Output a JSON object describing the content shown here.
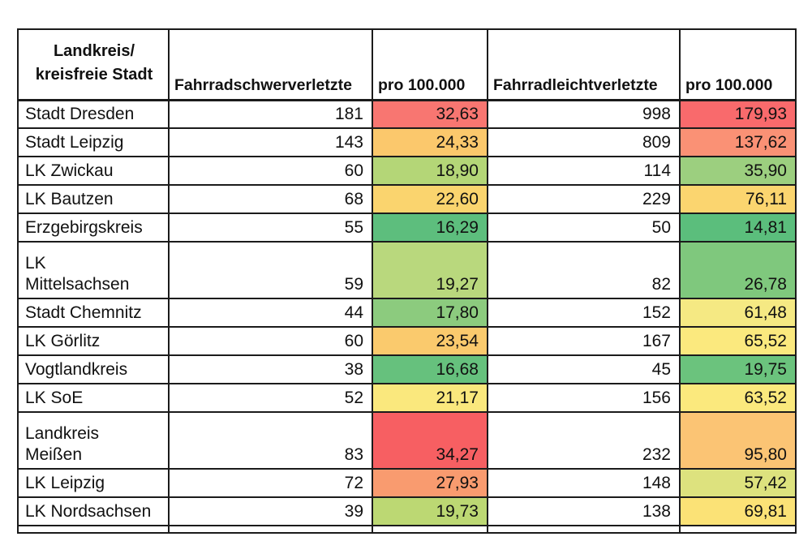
{
  "colors": {
    "background": "#ffffff",
    "border": "#1b1b1b",
    "text": "#111111",
    "scale_green": "#63BE7B",
    "scale_yellow": "#FFEB84",
    "scale_red": "#F8696B"
  },
  "table": {
    "header": {
      "name": "Landkreis/\nkreisfreie Stadt",
      "schwer": "Fahrradschwerverletzte",
      "schwer_rate": "pro 100.000",
      "leicht": "Fahrradleichtverletzte",
      "leicht_rate": "pro 100.000"
    },
    "rows": [
      {
        "name_lines": [
          "Stadt Dresden"
        ],
        "schwer": "181",
        "schwer_rate": "32,63",
        "schwer_rate_color": "#F87671",
        "leicht": "998",
        "leicht_rate": "179,93",
        "leicht_rate_color": "#F96A6C"
      },
      {
        "name_lines": [
          "Stadt Leipzig"
        ],
        "schwer": "143",
        "schwer_rate": "24,33",
        "schwer_rate_color": "#FBC86C",
        "leicht": "809",
        "leicht_rate": "137,62",
        "leicht_rate_color": "#FA9175"
      },
      {
        "name_lines": [
          "LK Zwickau"
        ],
        "schwer": "60",
        "schwer_rate": "18,90",
        "schwer_rate_color": "#B4D677",
        "leicht": "114",
        "leicht_rate": "35,90",
        "leicht_rate_color": "#9CCF7F"
      },
      {
        "name_lines": [
          "LK Bautzen"
        ],
        "schwer": "68",
        "schwer_rate": "22,60",
        "schwer_rate_color": "#FAD46E",
        "leicht": "229",
        "leicht_rate": "76,11",
        "leicht_rate_color": "#FBD56F"
      },
      {
        "name_lines": [
          "Erzgebirgskreis"
        ],
        "schwer": "55",
        "schwer_rate": "16,29",
        "schwer_rate_color": "#5DBE7D",
        "leicht": "50",
        "leicht_rate": "14,81",
        "leicht_rate_color": "#5BBE7C"
      },
      {
        "name_lines": [
          "LK",
          "Mittelsachsen"
        ],
        "schwer": "59",
        "schwer_rate": "19,27",
        "schwer_rate_color": "#B9D87D",
        "leicht": "82",
        "leicht_rate": "26,78",
        "leicht_rate_color": "#7FC87D"
      },
      {
        "name_lines": [
          "Stadt Chemnitz"
        ],
        "schwer": "44",
        "schwer_rate": "17,80",
        "schwer_rate_color": "#8CCB7E",
        "leicht": "152",
        "leicht_rate": "61,48",
        "leicht_rate_color": "#F5E983"
      },
      {
        "name_lines": [
          "LK Görlitz"
        ],
        "schwer": "60",
        "schwer_rate": "23,54",
        "schwer_rate_color": "#FACA6D",
        "leicht": "167",
        "leicht_rate": "65,52",
        "leicht_rate_color": "#FBE97E"
      },
      {
        "name_lines": [
          "Vogtlandkreis"
        ],
        "schwer": "38",
        "schwer_rate": "16,68",
        "schwer_rate_color": "#66C17D",
        "leicht": "45",
        "leicht_rate": "19,75",
        "leicht_rate_color": "#6BC37D"
      },
      {
        "name_lines": [
          "LK SoE"
        ],
        "schwer": "52",
        "schwer_rate": "21,17",
        "schwer_rate_color": "#FAE87D",
        "leicht": "156",
        "leicht_rate": "63,52",
        "leicht_rate_color": "#FBE97D"
      },
      {
        "name_lines": [
          "Landkreis",
          "Meißen"
        ],
        "schwer": "83",
        "schwer_rate": "34,27",
        "schwer_rate_color": "#F75F62",
        "leicht": "232",
        "leicht_rate": "95,80",
        "leicht_rate_color": "#FBC474"
      },
      {
        "name_lines": [
          "LK Leipzig"
        ],
        "schwer": "72",
        "schwer_rate": "27,93",
        "schwer_rate_color": "#F99B6F",
        "leicht": "148",
        "leicht_rate": "57,42",
        "leicht_rate_color": "#DDE27E"
      },
      {
        "name_lines": [
          "LK Nordsachsen"
        ],
        "schwer": "39",
        "schwer_rate": "19,73",
        "schwer_rate_color": "#BCD873",
        "leicht": "138",
        "leicht_rate": "69,81",
        "leicht_rate_color": "#FBE276"
      }
    ]
  },
  "chart_data": {
    "type": "table",
    "columns": [
      "Landkreis/kreisfreie Stadt",
      "Fahrradschwerverletzte",
      "pro 100.000",
      "Fahrradleichtverletzte",
      "pro 100.000"
    ],
    "rows": [
      [
        "Stadt Dresden",
        181,
        32.63,
        998,
        179.93
      ],
      [
        "Stadt Leipzig",
        143,
        24.33,
        809,
        137.62
      ],
      [
        "LK Zwickau",
        60,
        18.9,
        114,
        35.9
      ],
      [
        "LK Bautzen",
        68,
        22.6,
        229,
        76.11
      ],
      [
        "Erzgebirgskreis",
        55,
        16.29,
        50,
        14.81
      ],
      [
        "LK Mittelsachsen",
        59,
        19.27,
        82,
        26.78
      ],
      [
        "Stadt Chemnitz",
        44,
        17.8,
        152,
        61.48
      ],
      [
        "LK Görlitz",
        60,
        23.54,
        167,
        65.52
      ],
      [
        "Vogtlandkreis",
        38,
        16.68,
        45,
        19.75
      ],
      [
        "LK SoE",
        52,
        21.17,
        156,
        63.52
      ],
      [
        "Landkreis Meißen",
        83,
        34.27,
        232,
        95.8
      ],
      [
        "LK Leipzig",
        72,
        27.93,
        148,
        57.42
      ],
      [
        "LK Nordsachsen",
        39,
        19.73,
        138,
        69.81
      ]
    ],
    "decimal_format": "comma, e.g. 32,63",
    "layout_hints": {
      "heatmap_columns": [
        "pro 100.000 (schwer)",
        "pro 100.000 (leicht)"
      ],
      "color_scale": "red-yellow-green, red = high value, green = low value",
      "grid": true
    }
  }
}
